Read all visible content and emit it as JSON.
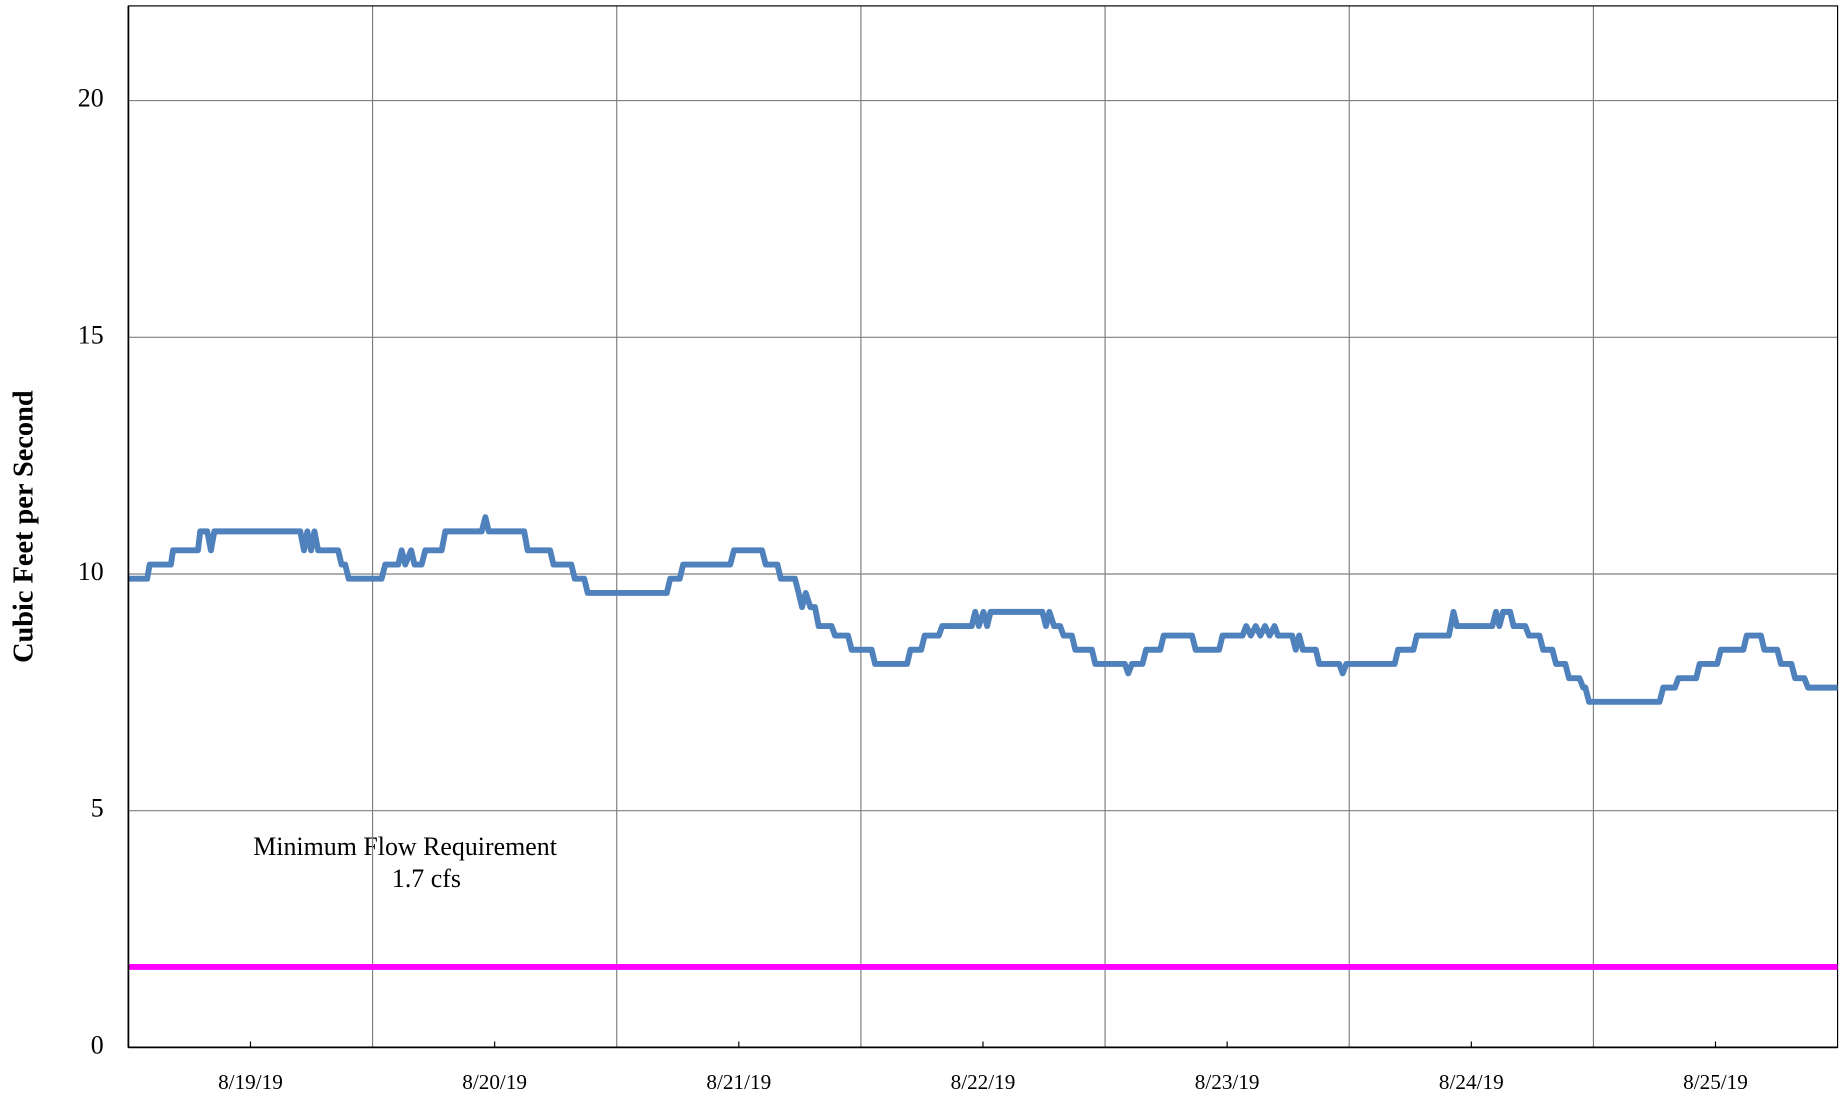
{
  "chart_data": {
    "type": "line",
    "y_label": "Cubic Feet per Second",
    "annotations": [
      "Minimum Flow Requirement",
      "1.7 cfs"
    ],
    "xlim": [
      0,
      7
    ],
    "xticks": [
      {
        "value": 0.5,
        "label": "8/19/19"
      },
      {
        "value": 1.5,
        "label": "8/20/19"
      },
      {
        "value": 2.5,
        "label": "8/21/19"
      },
      {
        "value": 3.5,
        "label": "8/22/19"
      },
      {
        "value": 4.5,
        "label": "8/23/19"
      },
      {
        "value": 5.5,
        "label": "8/24/19"
      },
      {
        "value": 6.5,
        "label": "8/25/19"
      }
    ],
    "xgrid": [
      1,
      2,
      3,
      4,
      5,
      6
    ],
    "ylim": [
      0,
      22
    ],
    "yticks": [
      0,
      5,
      10,
      15,
      20
    ],
    "grid": true,
    "x": [
      0,
      0.077,
      0.087,
      0.174,
      0.183,
      0.285,
      0.294,
      0.323,
      0.338,
      0.352,
      0.704,
      0.719,
      0.733,
      0.748,
      0.762,
      0.777,
      0.859,
      0.873,
      0.888,
      0.902,
      1.037,
      1.052,
      1.105,
      1.119,
      1.134,
      1.158,
      1.172,
      1.201,
      1.216,
      1.283,
      1.298,
      1.447,
      1.462,
      1.476,
      1.621,
      1.635,
      1.727,
      1.741,
      1.814,
      1.828,
      1.867,
      1.881,
      2.205,
      2.219,
      2.258,
      2.272,
      2.465,
      2.48,
      2.595,
      2.61,
      2.658,
      2.672,
      2.73,
      2.745,
      2.759,
      2.774,
      2.793,
      2.812,
      2.827,
      2.88,
      2.894,
      2.947,
      2.962,
      3.044,
      3.058,
      3.189,
      3.203,
      3.247,
      3.261,
      3.319,
      3.333,
      3.454,
      3.468,
      3.483,
      3.502,
      3.517,
      3.531,
      3.743,
      3.758,
      3.772,
      3.791,
      3.816,
      3.83,
      3.864,
      3.878,
      3.946,
      3.96,
      4.081,
      4.095,
      4.11,
      4.153,
      4.168,
      4.226,
      4.24,
      4.356,
      4.371,
      4.467,
      4.481,
      4.563,
      4.578,
      4.597,
      4.617,
      4.636,
      4.655,
      4.674,
      4.694,
      4.708,
      4.766,
      4.781,
      4.795,
      4.81,
      4.863,
      4.877,
      4.959,
      4.973,
      4.988,
      5.186,
      5.2,
      5.263,
      5.277,
      5.408,
      5.427,
      5.441,
      5.586,
      5.601,
      5.615,
      5.63,
      5.659,
      5.673,
      5.721,
      5.736,
      5.779,
      5.794,
      5.832,
      5.847,
      5.885,
      5.9,
      5.943,
      5.958,
      5.967,
      5.982,
      6.271,
      6.286,
      6.334,
      6.348,
      6.421,
      6.435,
      6.507,
      6.522,
      6.614,
      6.628,
      6.686,
      6.7,
      6.753,
      6.768,
      6.811,
      6.826,
      6.864,
      6.879,
      7
    ],
    "series": [
      {
        "color": "#4f81bd",
        "values": [
          9.9,
          9.9,
          10.2,
          10.2,
          10.5,
          10.5,
          10.9,
          10.9,
          10.5,
          10.9,
          10.9,
          10.5,
          10.9,
          10.5,
          10.9,
          10.5,
          10.5,
          10.2,
          10.2,
          9.9,
          9.9,
          10.2,
          10.2,
          10.5,
          10.2,
          10.5,
          10.2,
          10.2,
          10.5,
          10.5,
          10.9,
          10.9,
          11.2,
          10.9,
          10.9,
          10.5,
          10.5,
          10.2,
          10.2,
          9.9,
          9.9,
          9.6,
          9.6,
          9.9,
          9.9,
          10.2,
          10.2,
          10.5,
          10.5,
          10.2,
          10.2,
          9.9,
          9.9,
          9.6,
          9.3,
          9.6,
          9.3,
          9.3,
          8.9,
          8.9,
          8.7,
          8.7,
          8.4,
          8.4,
          8.1,
          8.1,
          8.4,
          8.4,
          8.7,
          8.7,
          8.9,
          8.9,
          9.2,
          8.9,
          9.2,
          8.9,
          9.2,
          9.2,
          8.9,
          9.2,
          8.9,
          8.9,
          8.7,
          8.7,
          8.4,
          8.4,
          8.1,
          8.1,
          7.9,
          8.1,
          8.1,
          8.4,
          8.4,
          8.7,
          8.7,
          8.4,
          8.4,
          8.7,
          8.7,
          8.9,
          8.7,
          8.9,
          8.7,
          8.9,
          8.7,
          8.9,
          8.7,
          8.7,
          8.4,
          8.7,
          8.4,
          8.4,
          8.1,
          8.1,
          7.9,
          8.1,
          8.1,
          8.4,
          8.4,
          8.7,
          8.7,
          9.2,
          8.9,
          8.9,
          9.2,
          8.9,
          9.2,
          9.2,
          8.9,
          8.9,
          8.7,
          8.7,
          8.4,
          8.4,
          8.1,
          8.1,
          7.8,
          7.8,
          7.6,
          7.6,
          7.3,
          7.3,
          7.6,
          7.6,
          7.8,
          7.8,
          8.1,
          8.1,
          8.4,
          8.4,
          8.7,
          8.7,
          8.4,
          8.4,
          8.1,
          8.1,
          7.8,
          7.8,
          7.6,
          7.6
        ]
      }
    ],
    "reference_lines": [
      {
        "value": 1.7,
        "color": "#ff00ff"
      }
    ]
  }
}
